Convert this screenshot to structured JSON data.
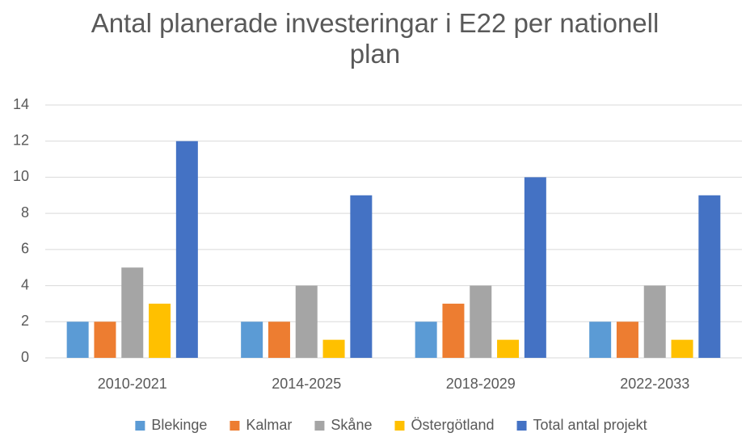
{
  "chart_data": {
    "type": "bar",
    "title": "Antal planerade investeringar i E22 per nationell plan",
    "categories": [
      "2010-2021",
      "2014-2025",
      "2018-2029",
      "2022-2033"
    ],
    "series": [
      {
        "name": "Blekinge",
        "color": "#5b9bd5",
        "values": [
          2,
          2,
          2,
          2
        ]
      },
      {
        "name": "Kalmar",
        "color": "#ed7d31",
        "values": [
          2,
          2,
          3,
          2
        ]
      },
      {
        "name": "Skåne",
        "color": "#a5a5a5",
        "values": [
          5,
          4,
          4,
          4
        ]
      },
      {
        "name": "Östergötland",
        "color": "#ffc000",
        "values": [
          3,
          1,
          1,
          1
        ]
      },
      {
        "name": "Total antal projekt",
        "color": "#4472c4",
        "values": [
          12,
          9,
          10,
          9
        ]
      }
    ],
    "ylim": [
      0,
      14
    ],
    "yticks": [
      0,
      2,
      4,
      6,
      8,
      10,
      12,
      14
    ],
    "grid": true,
    "legend": "bottom"
  }
}
